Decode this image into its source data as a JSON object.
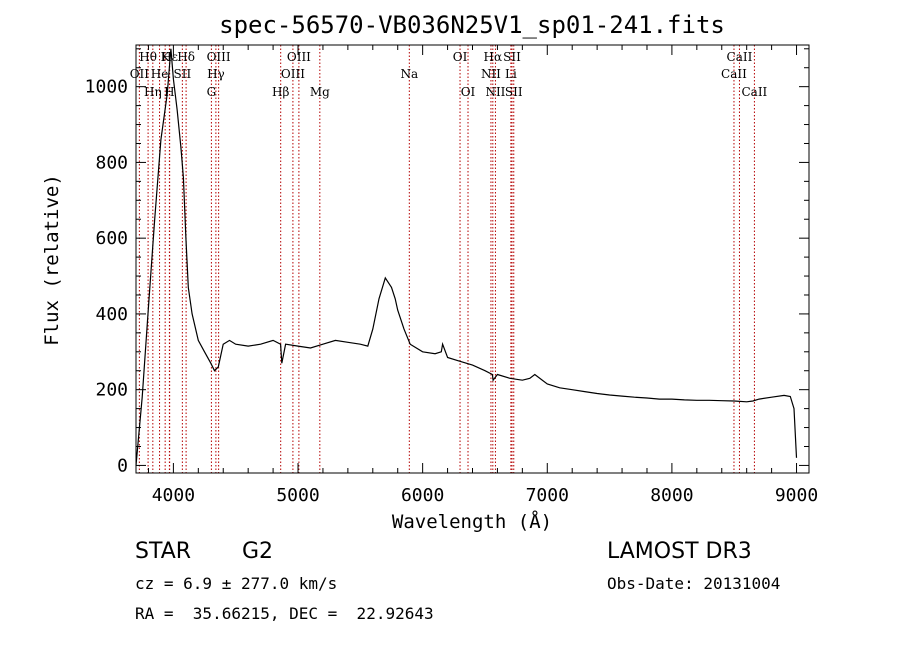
{
  "chart_data": {
    "type": "line",
    "title": "spec-56570-VB036N25V1_sp01-241.fits",
    "xlabel": "Wavelength (Å)",
    "ylabel": "Flux (relative)",
    "xlim": [
      3700,
      9100
    ],
    "ylim": [
      -20,
      1110
    ],
    "xticks": [
      4000,
      5000,
      6000,
      7000,
      8000,
      9000
    ],
    "yticks": [
      0,
      200,
      400,
      600,
      800,
      1000
    ],
    "x_minor_step": 200,
    "y_minor_step": 50,
    "series": [
      {
        "name": "spectrum",
        "x": [
          3700,
          3750,
          3800,
          3850,
          3900,
          3950,
          3980,
          4000,
          4030,
          4060,
          4080,
          4100,
          4120,
          4150,
          4200,
          4250,
          4300,
          4330,
          4360,
          4400,
          4450,
          4500,
          4600,
          4700,
          4800,
          4860,
          4870,
          4900,
          5000,
          5100,
          5200,
          5300,
          5400,
          5500,
          5560,
          5600,
          5650,
          5700,
          5730,
          5750,
          5780,
          5800,
          5850,
          5900,
          6000,
          6100,
          6150,
          6160,
          6200,
          6300,
          6400,
          6500,
          6560,
          6565,
          6600,
          6700,
          6800,
          6860,
          6900,
          7000,
          7100,
          7200,
          7300,
          7400,
          7500,
          7600,
          7700,
          7800,
          7900,
          8000,
          8100,
          8200,
          8300,
          8400,
          8500,
          8600,
          8650,
          8700,
          8800,
          8900,
          8950,
          8980,
          9000
        ],
        "values": [
          0,
          180,
          420,
          650,
          860,
          980,
          1100,
          1020,
          940,
          840,
          760,
          600,
          470,
          400,
          330,
          300,
          270,
          250,
          260,
          320,
          330,
          320,
          315,
          320,
          330,
          320,
          270,
          320,
          315,
          310,
          320,
          330,
          325,
          320,
          315,
          360,
          440,
          495,
          480,
          470,
          440,
          410,
          360,
          320,
          300,
          295,
          300,
          320,
          285,
          275,
          265,
          250,
          240,
          225,
          240,
          230,
          225,
          230,
          240,
          215,
          205,
          200,
          195,
          190,
          186,
          183,
          180,
          178,
          175,
          175,
          173,
          172,
          172,
          171,
          170,
          168,
          170,
          175,
          180,
          185,
          182,
          150,
          20
        ]
      }
    ],
    "lines": [
      {
        "label": "Hθ",
        "wavelength": 3797,
        "row": 1
      },
      {
        "label": "OII",
        "wavelength": 3727,
        "row": 2
      },
      {
        "label": "Hη",
        "wavelength": 3835,
        "row": 3
      },
      {
        "label": "He",
        "wavelength": 3889,
        "row": 2
      },
      {
        "label": "K",
        "wavelength": 3934,
        "row": 1
      },
      {
        "label": "H",
        "wavelength": 3968,
        "row": 3
      },
      {
        "label": "Hε",
        "wavelength": 3970,
        "row": 1
      },
      {
        "label": "Hδ",
        "wavelength": 4102,
        "row": 1
      },
      {
        "label": "SII",
        "wavelength": 4072,
        "row": 2
      },
      {
        "label": "OIII",
        "wavelength": 4363,
        "row": 1
      },
      {
        "label": "Hγ",
        "wavelength": 4341,
        "row": 2
      },
      {
        "label": "G",
        "wavelength": 4305,
        "row": 3
      },
      {
        "label": "Hβ",
        "wavelength": 4861,
        "row": 3
      },
      {
        "label": "OIII",
        "wavelength": 5007,
        "row": 1
      },
      {
        "label": "OIII",
        "wavelength": 4959,
        "row": 2
      },
      {
        "label": "Mg",
        "wavelength": 5175,
        "row": 3
      },
      {
        "label": "Na",
        "wavelength": 5893,
        "row": 2
      },
      {
        "label": "OI",
        "wavelength": 6300,
        "row": 1
      },
      {
        "label": "OI",
        "wavelength": 6364,
        "row": 3
      },
      {
        "label": "Hα",
        "wavelength": 6563,
        "row": 1
      },
      {
        "label": "NII",
        "wavelength": 6548,
        "row": 2
      },
      {
        "label": "NII",
        "wavelength": 6584,
        "row": 3
      },
      {
        "label": "SII",
        "wavelength": 6717,
        "row": 1
      },
      {
        "label": "Li",
        "wavelength": 6708,
        "row": 2
      },
      {
        "label": "SII",
        "wavelength": 6731,
        "row": 3
      },
      {
        "label": "CaII",
        "wavelength": 8542,
        "row": 1
      },
      {
        "label": "CaII",
        "wavelength": 8498,
        "row": 2
      },
      {
        "label": "CaII",
        "wavelength": 8662,
        "row": 3
      }
    ]
  },
  "info": {
    "object_class": "STAR",
    "subclass": "G2",
    "survey": "LAMOST DR3",
    "cz": "cz = 6.9 ± 277.0 km/s",
    "obs_date": "Obs-Date: 20131004",
    "coords": "RA =  35.66215, DEC =  22.92643"
  },
  "colors": {
    "line_marker": "#b40000",
    "spectrum": "#000000",
    "axes": "#000000"
  }
}
